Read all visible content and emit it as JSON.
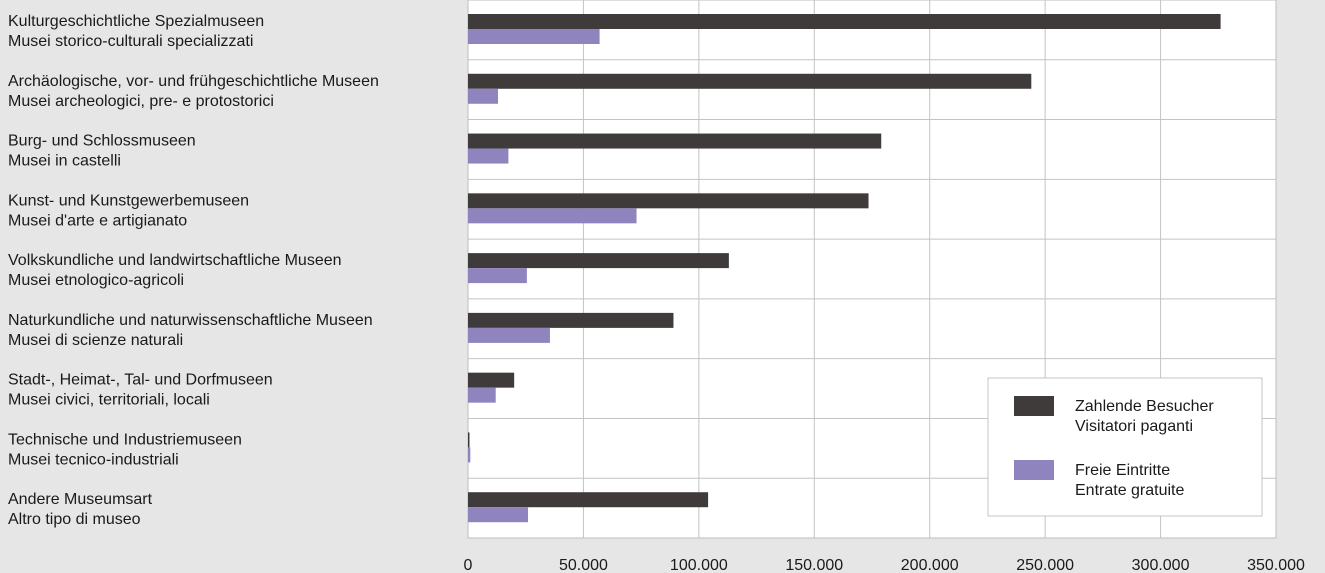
{
  "chart_data": {
    "type": "bar",
    "orientation": "horizontal",
    "categories": [
      [
        "Kulturgeschichtliche Spezialmuseen",
        "Musei storico-culturali specializzati"
      ],
      [
        "Archäologische, vor- und frühgeschichtliche Museen",
        "Musei archeologici, pre- e protostorici"
      ],
      [
        "Burg- und Schlossmuseen",
        "Musei in castelli"
      ],
      [
        "Kunst- und Kunstgewerbemuseen",
        "Musei d'arte e artigianato"
      ],
      [
        "Volkskundliche und landwirtschaftliche Museen",
        "Musei etnologico-agricoli"
      ],
      [
        "Naturkundliche und naturwissenschaftliche Museen",
        "Musei di scienze naturali"
      ],
      [
        "Stadt-, Heimat-, Tal- und Dorfmuseen",
        "Musei civici, territoriali, locali"
      ],
      [
        "Technische und Industriemuseen",
        "Musei tecnico-industriali"
      ],
      [
        "Andere Museumsart",
        "Altro tipo di museo"
      ]
    ],
    "series": [
      {
        "name": [
          "Zahlende Besucher",
          "Visitatori paganti"
        ],
        "color": "#3f3b3b",
        "values": [
          326000,
          244000,
          179000,
          173500,
          113000,
          89000,
          20000,
          500,
          104000
        ]
      },
      {
        "name": [
          "Freie Eintritte",
          "Entrate gratuite"
        ],
        "color": "#8f84bd",
        "values": [
          57000,
          13000,
          17500,
          73000,
          25500,
          35500,
          12000,
          1000,
          26000
        ]
      }
    ],
    "xlim": [
      0,
      350000
    ],
    "xticks": [
      0,
      50000,
      100000,
      150000,
      200000,
      250000,
      300000,
      350000
    ],
    "xtick_labels": [
      "0",
      "50.000",
      "100.000",
      "150.000",
      "200.000",
      "250.000",
      "300.000",
      "350.000"
    ],
    "title": "",
    "xlabel": "",
    "ylabel": "",
    "grid": true,
    "legend_position": "bottom-right"
  }
}
